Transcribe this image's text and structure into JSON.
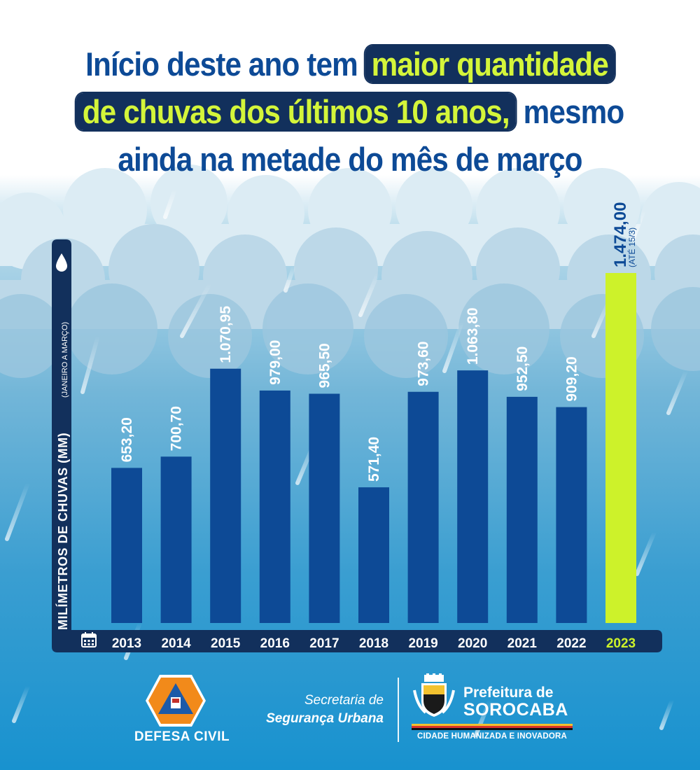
{
  "header": {
    "line1_plain": "Início deste ano tem",
    "line1_highlight": "maior quantidade",
    "line2_highlight": "de chuvas dos últimos 10 anos,",
    "line2_plain": "mesmo",
    "line3": "ainda na metade do mês de março"
  },
  "colors": {
    "title": "#0d4a96",
    "highlight_bg": "#12305c",
    "highlight_text": "#d4f53a",
    "bar": "#0d4a96",
    "bar_highlight": "#cdf22a",
    "axis_band": "#12305c"
  },
  "chart_data": {
    "type": "bar",
    "ylabel": "MILÍMETROS DE CHUVAS (MM)",
    "ylabel_sub": "(JANEIRO A MARÇO)",
    "categories": [
      "2013",
      "2014",
      "2015",
      "2016",
      "2017",
      "2018",
      "2019",
      "2020",
      "2021",
      "2022",
      "2023"
    ],
    "values": [
      653.2,
      700.7,
      1070.95,
      979.0,
      965.5,
      571.4,
      973.6,
      1063.8,
      952.5,
      909.2,
      1474.0
    ],
    "value_labels": [
      "653,20",
      "700,70",
      "1.070,95",
      "979,00",
      "965,50",
      "571,40",
      "973,60",
      "1.063,80",
      "952,50",
      "909,20",
      "1.474,00"
    ],
    "highlight_index": 10,
    "highlight_note": "(ATÉ 15/3)",
    "ylim": [
      0,
      1500
    ],
    "grid": false,
    "legend": "none",
    "icons": [
      "water-drop-icon",
      "calendar-icon"
    ]
  },
  "footer": {
    "defesa_civil": "DEFESA CIVIL",
    "secretaria_line1": "Secretaria de",
    "secretaria_line2": "Segurança Urbana",
    "prefeitura_line1": "Prefeitura de",
    "prefeitura_line2": "SOROCABA",
    "prefeitura_tagline": "CIDADE HUMANIZADA E INOVADORA"
  }
}
